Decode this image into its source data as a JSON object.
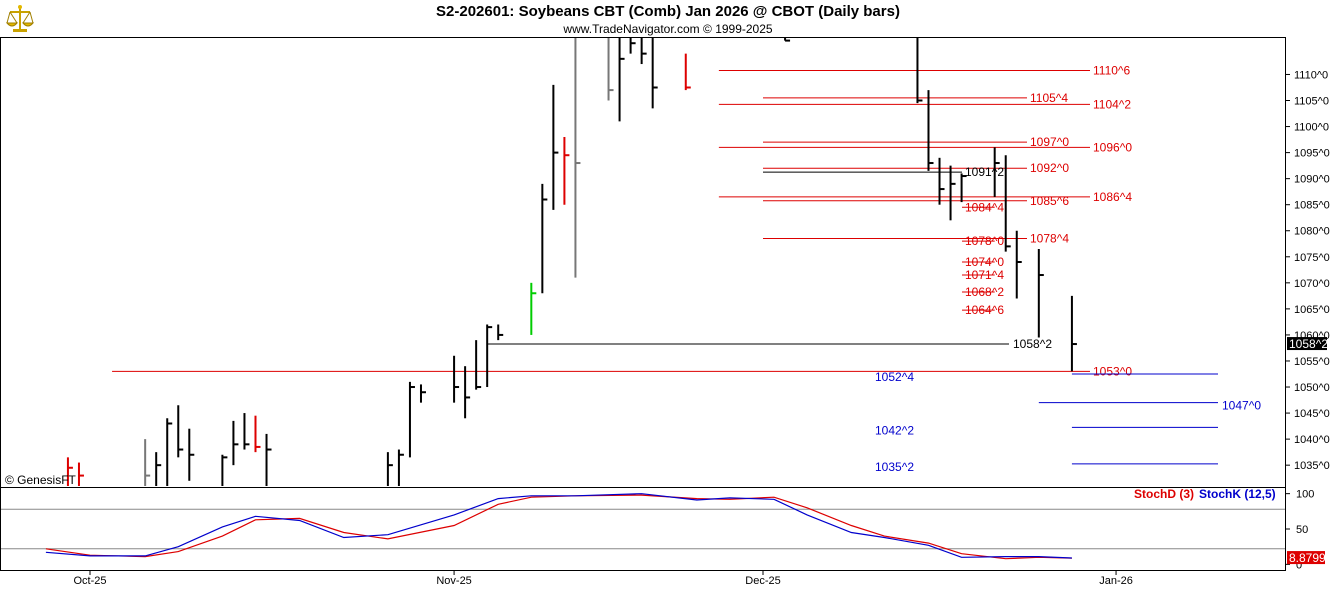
{
  "title": "S2-202601:  Soybeans CBT (Comb) Jan 2026 @ CBOT  (Daily bars)",
  "subtitle": "www.TradeNavigator.com © 1999-2025",
  "copyright": "© GenesisFT",
  "icons": {
    "logo": "golden-scale-logo-icon"
  },
  "colors": {
    "bar": "#000000",
    "upbar": "#00cc00",
    "downbar": "#dd0000",
    "gray": "#777777",
    "red_level": "#dd0000",
    "blue_level": "#0000cc",
    "black_level": "#000000",
    "stochD": "#dd0000",
    "stochK": "#0000cc"
  },
  "chart_data": [
    {
      "type": "bar",
      "subtype": "ohlc",
      "title": "S2-202601:  Soybeans CBT (Comb) Jan 2026 @ CBOT  (Daily bars)",
      "y_axis": {
        "ylim": [
          1031,
          1117
        ],
        "ticks": [
          "1110^0",
          "1105^0",
          "1100^0",
          "1095^0",
          "1090^0",
          "1085^0",
          "1080^0",
          "1075^0",
          "1070^0",
          "1065^0",
          "1060^0",
          "1055^0",
          "1050^0",
          "1045^0",
          "1040^0",
          "1035^0"
        ],
        "tick_values": [
          1110,
          1105,
          1100,
          1095,
          1090,
          1085,
          1080,
          1075,
          1070,
          1065,
          1060,
          1055,
          1050,
          1045,
          1040,
          1035
        ]
      },
      "x_axis": {
        "labels": [
          "Oct-25",
          "Nov-25",
          "Dec-25",
          "Jan-26"
        ],
        "label_dates": [
          "2025-10-01",
          "2025-11-03",
          "2025-12-01",
          "2026-01-02"
        ]
      },
      "last_price": "1058^2",
      "bars": [
        {
          "date": "2025-09-29",
          "high": 1036.5,
          "low": 1031,
          "close": 1034.5,
          "color": "red"
        },
        {
          "date": "2025-09-30",
          "high": 1035.5,
          "low": 1031,
          "close": 1033,
          "color": "red"
        },
        {
          "date": "2025-10-06",
          "high": 1040,
          "low": 1031,
          "close": 1033,
          "color": "gray"
        },
        {
          "date": "2025-10-07",
          "high": 1037.5,
          "low": 1031,
          "close": 1035,
          "color": "black"
        },
        {
          "date": "2025-10-08",
          "high": 1044,
          "low": 1031,
          "close": 1043,
          "color": "black"
        },
        {
          "date": "2025-10-09",
          "high": 1046.5,
          "low": 1036.5,
          "close": 1038,
          "color": "black"
        },
        {
          "date": "2025-10-10",
          "high": 1042,
          "low": 1032,
          "close": 1037,
          "color": "black"
        },
        {
          "date": "2025-10-13",
          "high": 1037,
          "low": 1031,
          "close": 1036.5,
          "color": "black"
        },
        {
          "date": "2025-10-14",
          "high": 1043.5,
          "low": 1035,
          "close": 1039,
          "color": "black"
        },
        {
          "date": "2025-10-15",
          "high": 1045,
          "low": 1038,
          "close": 1039,
          "color": "black"
        },
        {
          "date": "2025-10-16",
          "high": 1044.5,
          "low": 1037.5,
          "close": 1038.5,
          "color": "red"
        },
        {
          "date": "2025-10-17",
          "high": 1041,
          "low": 1031,
          "close": 1038,
          "color": "black"
        },
        {
          "date": "2025-10-28",
          "high": 1037.5,
          "low": 1031,
          "close": 1035,
          "color": "black"
        },
        {
          "date": "2025-10-29",
          "high": 1038,
          "low": 1031,
          "close": 1037,
          "color": "black"
        },
        {
          "date": "2025-10-30",
          "high": 1051,
          "low": 1036.5,
          "close": 1050,
          "color": "black"
        },
        {
          "date": "2025-10-31",
          "high": 1050.5,
          "low": 1047,
          "close": 1049,
          "color": "black"
        },
        {
          "date": "2025-11-03",
          "high": 1056,
          "low": 1047,
          "close": 1050,
          "color": "black"
        },
        {
          "date": "2025-11-04",
          "high": 1054,
          "low": 1044,
          "close": 1048,
          "color": "black"
        },
        {
          "date": "2025-11-05",
          "high": 1059,
          "low": 1049.5,
          "close": 1050,
          "color": "black"
        },
        {
          "date": "2025-11-06",
          "high": 1062,
          "low": 1050,
          "close": 1061.5,
          "color": "black"
        },
        {
          "date": "2025-11-07",
          "high": 1062,
          "low": 1059,
          "close": 1060,
          "color": "black"
        },
        {
          "date": "2025-11-10",
          "high": 1070,
          "low": 1060,
          "close": 1068,
          "color": "green"
        },
        {
          "date": "2025-11-11",
          "high": 1089,
          "low": 1068,
          "close": 1086,
          "color": "black"
        },
        {
          "date": "2025-11-12",
          "high": 1108,
          "low": 1084,
          "close": 1095,
          "color": "black"
        },
        {
          "date": "2025-11-13",
          "high": 1098,
          "low": 1085,
          "close": 1094.5,
          "color": "red"
        },
        {
          "date": "2025-11-14",
          "high": 1117,
          "low": 1071,
          "close": 1093,
          "color": "gray"
        },
        {
          "date": "2025-11-17",
          "high": 1117,
          "low": 1105,
          "close": 1107,
          "color": "gray"
        },
        {
          "date": "2025-11-18",
          "high": 1117,
          "low": 1101,
          "close": 1113,
          "color": "black"
        },
        {
          "date": "2025-11-19",
          "high": 1117,
          "low": 1114,
          "close": 1116,
          "color": "black"
        },
        {
          "date": "2025-11-20",
          "high": 1117,
          "low": 1112,
          "close": 1114,
          "color": "black"
        },
        {
          "date": "2025-11-21",
          "high": 1117,
          "low": 1103.5,
          "close": 1107.5,
          "color": "black"
        },
        {
          "date": "2025-11-24",
          "high": 1114,
          "low": 1107,
          "close": 1107.5,
          "color": "red"
        },
        {
          "date": "2025-12-03",
          "high": 1117,
          "low": 1116.5,
          "close": 1116.5,
          "color": "black"
        },
        {
          "date": "2025-12-15",
          "high": 1117,
          "low": 1104.5,
          "close": 1105,
          "color": "black"
        },
        {
          "date": "2025-12-16",
          "high": 1107,
          "low": 1091.5,
          "close": 1093,
          "color": "black"
        },
        {
          "date": "2025-12-17",
          "high": 1094,
          "low": 1085,
          "close": 1088,
          "color": "black"
        },
        {
          "date": "2025-12-18",
          "high": 1092.5,
          "low": 1082,
          "close": 1089,
          "color": "black"
        },
        {
          "date": "2025-12-19",
          "high": 1091,
          "low": 1085.5,
          "close": 1090.5,
          "color": "black"
        },
        {
          "date": "2025-12-22",
          "high": 1096,
          "low": 1086.5,
          "close": 1093,
          "color": "black"
        },
        {
          "date": "2025-12-23",
          "high": 1094.5,
          "low": 1076,
          "close": 1077,
          "color": "black"
        },
        {
          "date": "2025-12-24",
          "high": 1080,
          "low": 1067,
          "close": 1074,
          "color": "black"
        },
        {
          "date": "2025-12-26",
          "high": 1076.5,
          "low": 1059.5,
          "close": 1071.5,
          "color": "black"
        },
        {
          "date": "2025-12-29",
          "high": 1067.5,
          "low": 1053,
          "close": 1058.25,
          "color": "black"
        }
      ],
      "levels": [
        {
          "value": 1110.75,
          "label": "1110^6",
          "color": "red",
          "start": "2025-11-27",
          "label_pos": "right"
        },
        {
          "value": 1105.5,
          "label": "1105^4",
          "color": "red",
          "start": "2025-12-01",
          "label_pos": "mid"
        },
        {
          "value": 1104.25,
          "label": "1104^2",
          "color": "red",
          "start": "2025-11-27",
          "label_pos": "right"
        },
        {
          "value": 1097.0,
          "label": "1097^0",
          "color": "red",
          "start": "2025-12-01",
          "label_pos": "mid"
        },
        {
          "value": 1096.0,
          "label": "1096^0",
          "color": "red",
          "start": "2025-11-27",
          "label_pos": "right"
        },
        {
          "value": 1092.0,
          "label": "1092^0",
          "color": "red",
          "start": "2025-12-01",
          "label_pos": "mid"
        },
        {
          "value": 1091.25,
          "label": "1091^2",
          "color": "black",
          "start": "2025-12-01",
          "label_pos": "inner"
        },
        {
          "value": 1086.5,
          "label": "1086^4",
          "color": "red",
          "start": "2025-11-27",
          "label_pos": "right"
        },
        {
          "value": 1085.75,
          "label": "1085^6",
          "color": "red",
          "start": "2025-12-01",
          "label_pos": "mid"
        },
        {
          "value": 1084.5,
          "label": "1084^4",
          "color": "red",
          "start": "2025-12-22",
          "label_pos": "inner"
        },
        {
          "value": 1078.5,
          "label": "1078^4",
          "color": "red",
          "start": "2025-12-01",
          "label_pos": "mid"
        },
        {
          "value": 1078.0,
          "label": "1078^0",
          "color": "red",
          "start": "2025-12-22",
          "label_pos": "inner"
        },
        {
          "value": 1074.0,
          "label": "1074^0",
          "color": "red",
          "start": "2025-12-22",
          "label_pos": "inner"
        },
        {
          "value": 1071.5,
          "label": "1071^4",
          "color": "red",
          "start": "2025-12-22",
          "label_pos": "inner"
        },
        {
          "value": 1068.25,
          "label": "1068^2",
          "color": "red",
          "start": "2025-12-22",
          "label_pos": "inner"
        },
        {
          "value": 1064.75,
          "label": "1064^6",
          "color": "red",
          "start": "2025-12-22",
          "label_pos": "inner"
        },
        {
          "value": 1058.25,
          "label": "1058^2",
          "color": "black",
          "start": "2025-11-06",
          "label_pos": "last"
        },
        {
          "value": 1053.0,
          "label": "1053^0",
          "color": "red",
          "start": "2025-10-03",
          "label_pos": "mid"
        },
        {
          "value": 1052.5,
          "label": "1052^4",
          "color": "blue",
          "start": "2025-12-29",
          "label_pos": "blue_left"
        },
        {
          "value": 1047.0,
          "label": "1047^0",
          "color": "blue",
          "start": "2025-12-26",
          "label_pos": "blue_right"
        },
        {
          "value": 1042.25,
          "label": "1042^2",
          "color": "blue",
          "start": "2025-12-29",
          "label_pos": "blue_left"
        },
        {
          "value": 1035.25,
          "label": "1035^2",
          "color": "blue",
          "start": "2025-12-29",
          "label_pos": "blue_left"
        }
      ]
    },
    {
      "type": "line",
      "title": "",
      "legend": [
        "StochD (3)",
        "StochK (12,5)"
      ],
      "y_axis": {
        "ylim": [
          -8,
          108
        ],
        "ticks": [
          "100",
          "50",
          "0"
        ],
        "tick_values": [
          100,
          50,
          0
        ],
        "reference_lines": [
          78,
          22
        ]
      },
      "last_value": "8.8799",
      "series": [
        {
          "name": "StochD (3)",
          "color": "red",
          "points": [
            [
              "2025-09-27",
              22
            ],
            [
              "2025-10-01",
              13
            ],
            [
              "2025-10-06",
              11
            ],
            [
              "2025-10-09",
              18
            ],
            [
              "2025-10-13",
              40
            ],
            [
              "2025-10-16",
              63
            ],
            [
              "2025-10-20",
              65
            ],
            [
              "2025-10-24",
              45
            ],
            [
              "2025-10-28",
              36
            ],
            [
              "2025-11-03",
              55
            ],
            [
              "2025-11-07",
              85
            ],
            [
              "2025-11-10",
              95
            ],
            [
              "2025-11-14",
              97
            ],
            [
              "2025-11-20",
              98
            ],
            [
              "2025-11-25",
              93
            ],
            [
              "2025-11-28",
              92
            ],
            [
              "2025-12-02",
              95
            ],
            [
              "2025-12-05",
              80
            ],
            [
              "2025-12-09",
              55
            ],
            [
              "2025-12-12",
              40
            ],
            [
              "2025-12-16",
              30
            ],
            [
              "2025-12-19",
              15
            ],
            [
              "2025-12-23",
              8
            ],
            [
              "2025-12-26",
              10
            ],
            [
              "2025-12-29",
              8.8799
            ]
          ]
        },
        {
          "name": "StochK (12,5)",
          "color": "blue",
          "points": [
            [
              "2025-09-27",
              17
            ],
            [
              "2025-10-01",
              12
            ],
            [
              "2025-10-06",
              12
            ],
            [
              "2025-10-09",
              25
            ],
            [
              "2025-10-13",
              53
            ],
            [
              "2025-10-16",
              68
            ],
            [
              "2025-10-20",
              62
            ],
            [
              "2025-10-24",
              38
            ],
            [
              "2025-10-28",
              42
            ],
            [
              "2025-11-03",
              70
            ],
            [
              "2025-11-07",
              93
            ],
            [
              "2025-11-10",
              97
            ],
            [
              "2025-11-14",
              97
            ],
            [
              "2025-11-20",
              100
            ],
            [
              "2025-11-25",
              91
            ],
            [
              "2025-11-28",
              94
            ],
            [
              "2025-12-02",
              92
            ],
            [
              "2025-12-05",
              70
            ],
            [
              "2025-12-09",
              45
            ],
            [
              "2025-12-12",
              38
            ],
            [
              "2025-12-16",
              27
            ],
            [
              "2025-12-19",
              10
            ],
            [
              "2025-12-23",
              11
            ],
            [
              "2025-12-26",
              11
            ],
            [
              "2025-12-29",
              9
            ]
          ]
        }
      ]
    }
  ]
}
